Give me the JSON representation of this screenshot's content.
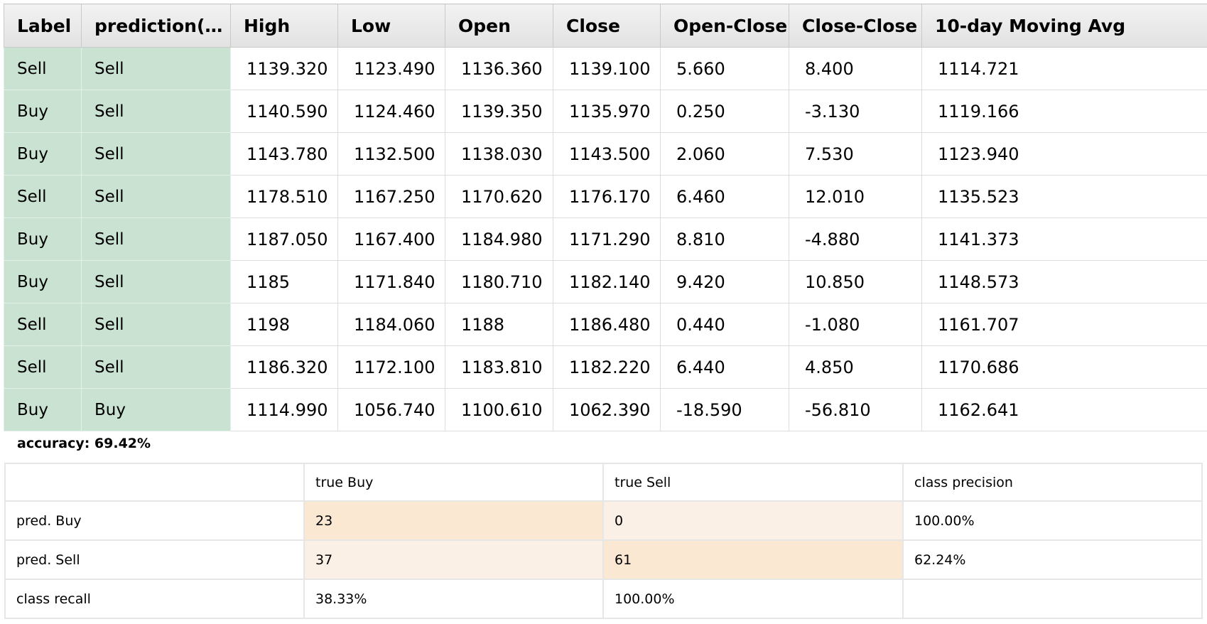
{
  "data_table": {
    "columns": [
      "Label",
      "prediction(La...",
      "High",
      "Low",
      "Open",
      "Close",
      "Open-Close",
      "Close-Close",
      "10-day Moving Avg"
    ],
    "rows": [
      [
        "Sell",
        "Sell",
        "1139.320",
        "1123.490",
        "1136.360",
        "1139.100",
        "5.660",
        "8.400",
        "1114.721"
      ],
      [
        "Buy",
        "Sell",
        "1140.590",
        "1124.460",
        "1139.350",
        "1135.970",
        "0.250",
        "-3.130",
        "1119.166"
      ],
      [
        "Buy",
        "Sell",
        "1143.780",
        "1132.500",
        "1138.030",
        "1143.500",
        "2.060",
        "7.530",
        "1123.940"
      ],
      [
        "Sell",
        "Sell",
        "1178.510",
        "1167.250",
        "1170.620",
        "1176.170",
        "6.460",
        "12.010",
        "1135.523"
      ],
      [
        "Buy",
        "Sell",
        "1187.050",
        "1167.400",
        "1184.980",
        "1171.290",
        "8.810",
        "-4.880",
        "1141.373"
      ],
      [
        "Buy",
        "Sell",
        "1185",
        "1171.840",
        "1180.710",
        "1182.140",
        "9.420",
        "10.850",
        "1148.573"
      ],
      [
        "Sell",
        "Sell",
        "1198",
        "1184.060",
        "1188",
        "1186.480",
        "0.440",
        "-1.080",
        "1161.707"
      ],
      [
        "Sell",
        "Sell",
        "1186.320",
        "1172.100",
        "1183.810",
        "1182.220",
        "6.440",
        "4.850",
        "1170.686"
      ],
      [
        "Buy",
        "Buy",
        "1114.990",
        "1056.740",
        "1100.610",
        "1062.390",
        "-18.590",
        "-56.810",
        "1162.641"
      ]
    ]
  },
  "accuracy": {
    "text": "accuracy: 69.42%"
  },
  "confusion_matrix": {
    "header": [
      "",
      "true Buy",
      "true Sell",
      "class precision"
    ],
    "rows": [
      [
        "pred. Buy",
        "23",
        "0",
        "100.00%"
      ],
      [
        "pred. Sell",
        "37",
        "61",
        "62.24%"
      ],
      [
        "class recall",
        "38.33%",
        "100.00%",
        ""
      ]
    ]
  },
  "colors": {
    "label_cell": "#c9e2d1",
    "header_bg": "#e6e6e6",
    "cm_high": "#fbe8d3",
    "cm_low": "#faf0e6"
  }
}
